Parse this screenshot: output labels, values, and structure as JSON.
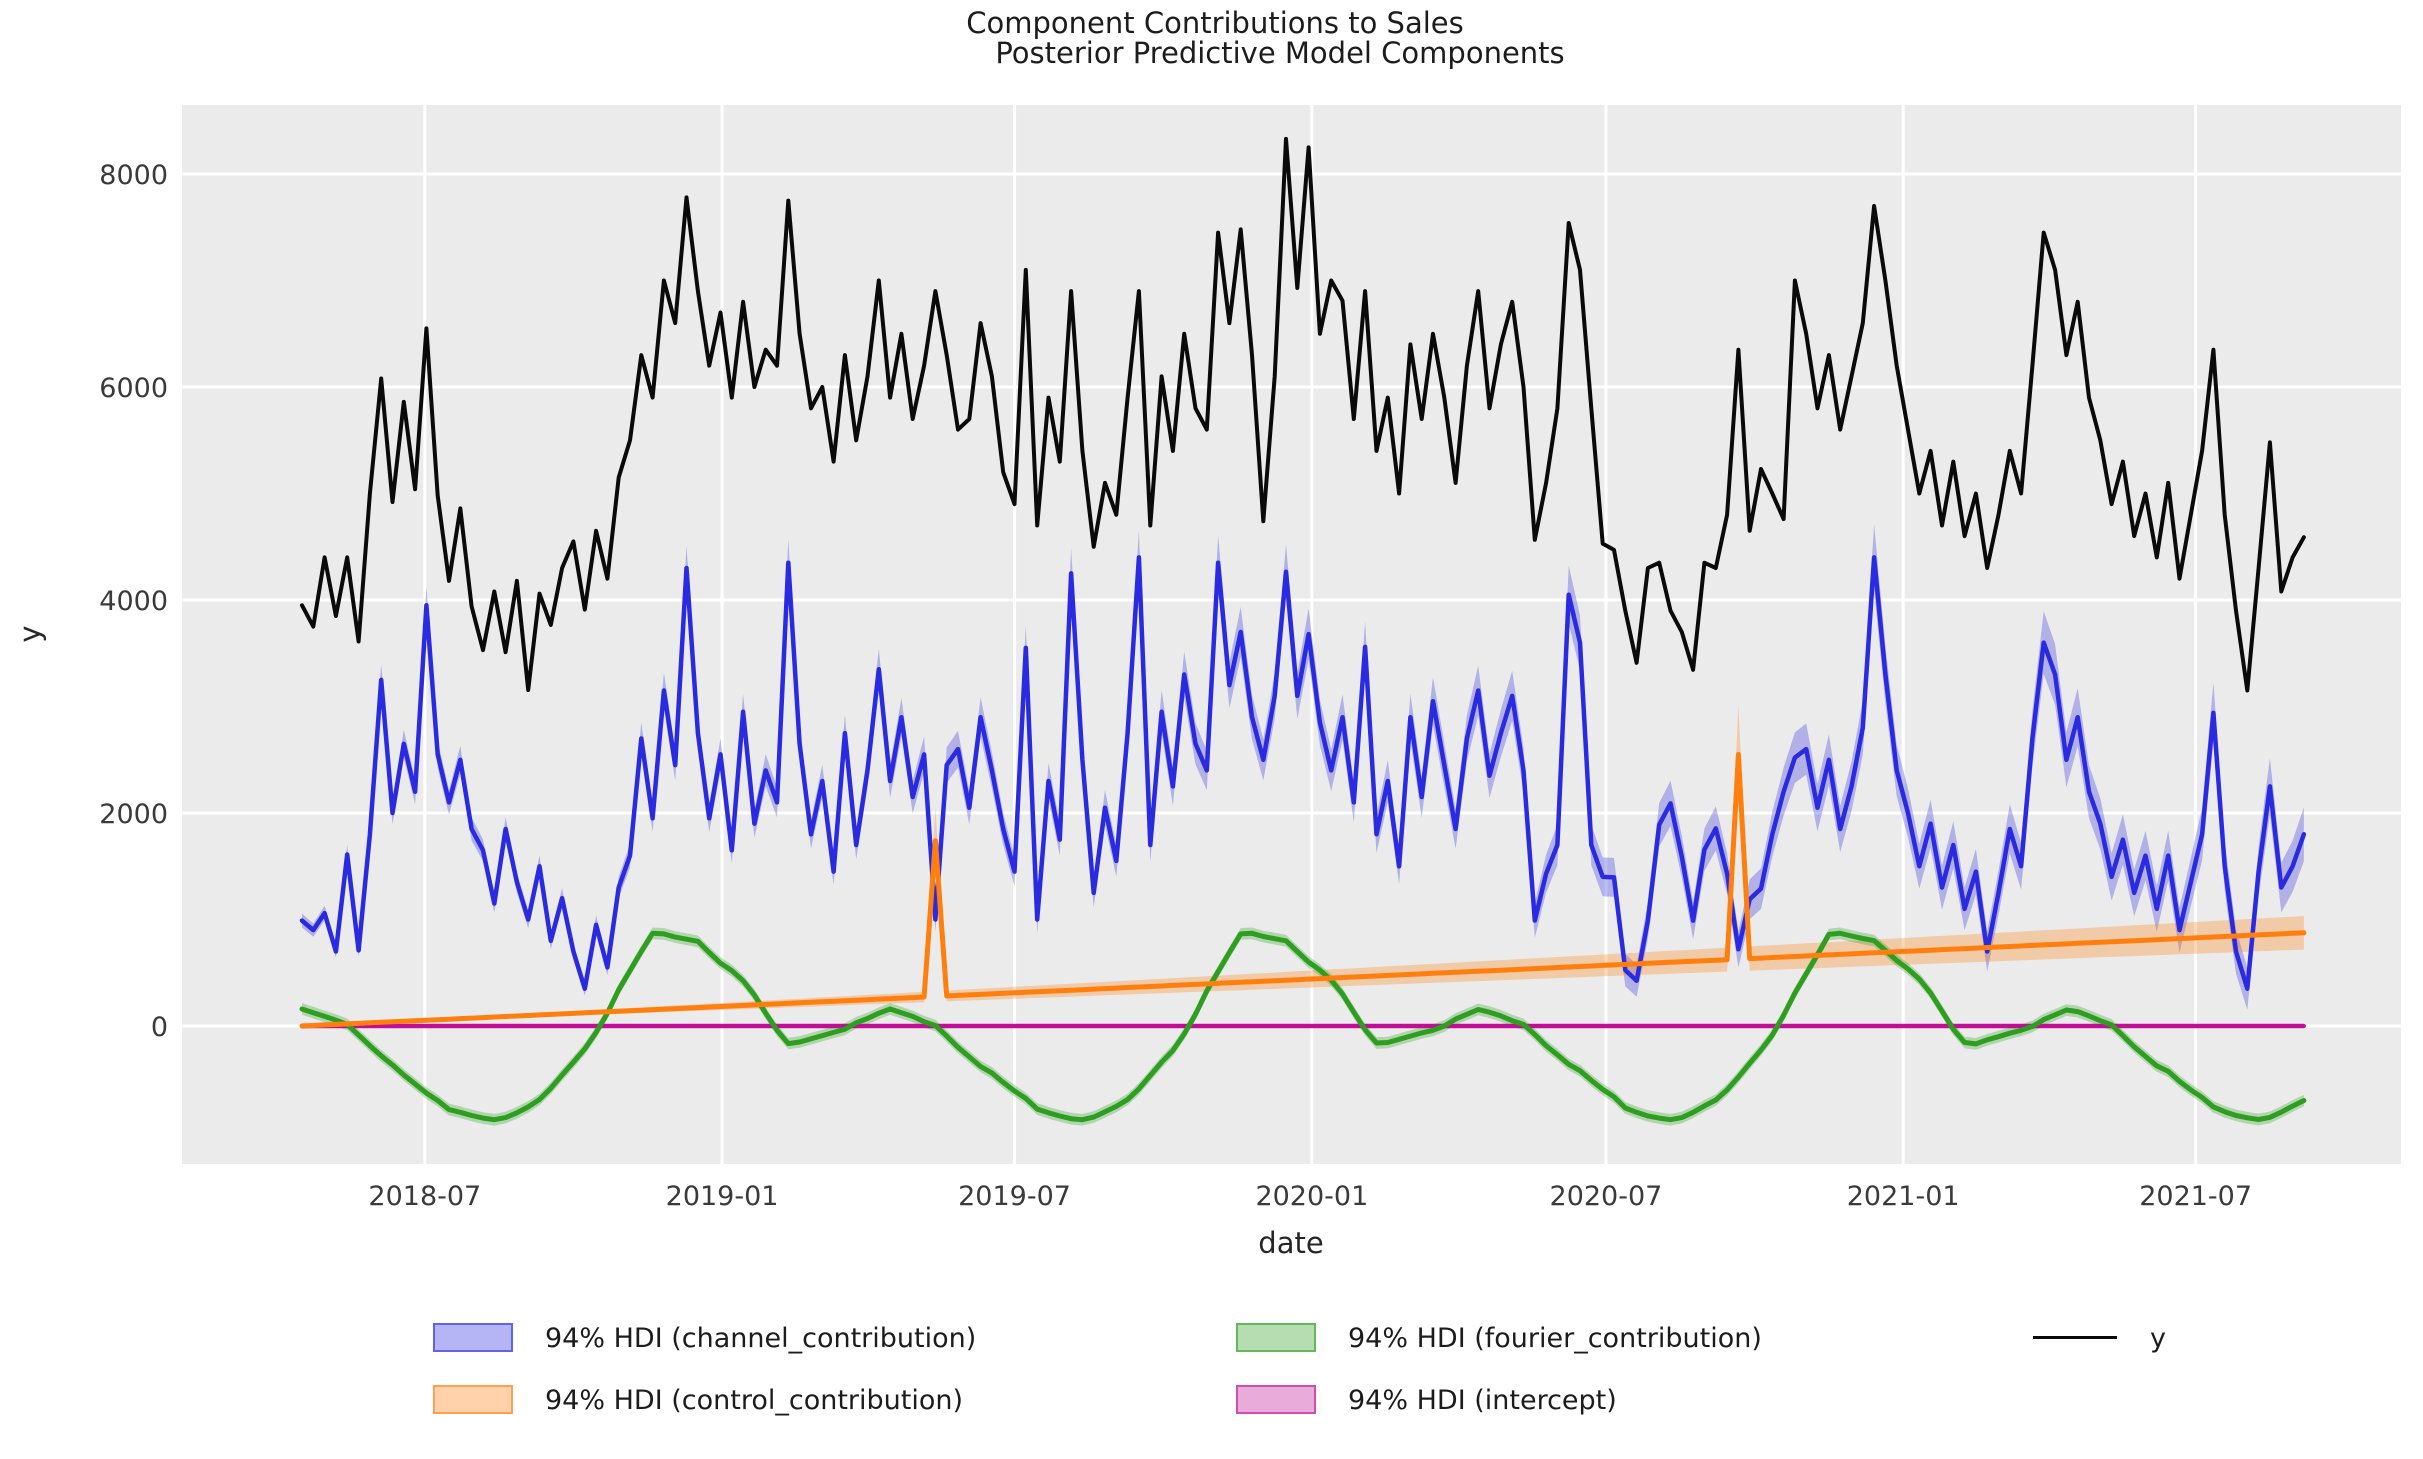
{
  "title": {
    "line1": "Component Contributions to Sales",
    "line2": "Posterior Predictive Model Components"
  },
  "axes": {
    "xlabel": "date",
    "ylabel": "y",
    "x_ticks": [
      {
        "label": "2018-07",
        "week": 10.86
      },
      {
        "label": "2019-01",
        "week": 37.14
      },
      {
        "label": "2019-07",
        "week": 63.0
      },
      {
        "label": "2020-01",
        "week": 89.29
      },
      {
        "label": "2020-07",
        "week": 115.29
      },
      {
        "label": "2021-01",
        "week": 141.57
      },
      {
        "label": "2021-07",
        "week": 167.43
      }
    ],
    "y_ticks": [
      {
        "label": "0",
        "value": 0
      },
      {
        "label": "2000",
        "value": 2000
      },
      {
        "label": "4000",
        "value": 4000
      },
      {
        "label": "6000",
        "value": 6000
      },
      {
        "label": "8000",
        "value": 8000
      }
    ]
  },
  "legend": {
    "items": [
      {
        "label": "94% HDI (channel_contribution)",
        "color": "#2a2be1",
        "kind": "patch",
        "col": 1,
        "row": 1
      },
      {
        "label": "94% HDI (control_contribution)",
        "color": "#ff7f0e",
        "kind": "patch",
        "col": 1,
        "row": 2
      },
      {
        "label": "94% HDI (fourier_contribution)",
        "color": "#2e9e20",
        "kind": "patch",
        "col": 2,
        "row": 1
      },
      {
        "label": "94% HDI (intercept)",
        "color": "#c00f96",
        "kind": "patch",
        "col": 2,
        "row": 2
      },
      {
        "label": "y",
        "color": "#0a0a0a",
        "kind": "line",
        "col": 3,
        "row": 1
      }
    ]
  },
  "style": {
    "plot_bg": "#ebebeb",
    "grid_color": "#ffffff",
    "tick_color": "#3a3a3a",
    "band_opacity": 0.3
  },
  "chart_data": {
    "type": "line",
    "title": "Component Contributions to Sales",
    "subtitle": "Posterior Predictive Model Components",
    "xlabel": "date",
    "ylabel": "y",
    "x_start_date": "2018-04-16",
    "x_freq": "weekly",
    "n_points": 178,
    "ylim": [
      -1300,
      8650
    ],
    "grid": true,
    "legend_position": "bottom",
    "series": [
      {
        "name": "y",
        "color": "#0a0a0a",
        "width": 4,
        "values": [
          3950,
          3750,
          4400,
          3850,
          4400,
          3610,
          5000,
          6080,
          4920,
          5860,
          5040,
          6550,
          4980,
          4180,
          4860,
          3940,
          3530,
          4080,
          3510,
          4180,
          3155,
          4060,
          3765,
          4300,
          4550,
          3910,
          4650,
          4200,
          5150,
          5500,
          6300,
          5900,
          7000,
          6600,
          7780,
          6900,
          6200,
          6700,
          5900,
          6800,
          6000,
          6350,
          6200,
          7750,
          6500,
          5800,
          6000,
          5300,
          6300,
          5500,
          6100,
          7000,
          5900,
          6500,
          5700,
          6200,
          6900,
          6300,
          5600,
          5700,
          6600,
          6100,
          5200,
          4900,
          7100,
          4700,
          5900,
          5300,
          6900,
          5400,
          4500,
          5100,
          4800,
          5900,
          6900,
          4700,
          6100,
          5400,
          6500,
          5800,
          5600,
          7450,
          6600,
          7480,
          6300,
          4740,
          6100,
          8330,
          6930,
          8250,
          6500,
          7000,
          6810,
          5700,
          6900,
          5400,
          5900,
          5000,
          6400,
          5700,
          6500,
          5900,
          5100,
          6200,
          6900,
          5800,
          6400,
          6800,
          6000,
          4565,
          5100,
          5800,
          7540,
          7100,
          5800,
          4530,
          4470,
          3900,
          3410,
          4300,
          4350,
          3900,
          3700,
          3345,
          4350,
          4300,
          4800,
          6350,
          4650,
          5230,
          5000,
          4760,
          7000,
          6500,
          5800,
          6300,
          5600,
          6100,
          6600,
          7700,
          7000,
          6200,
          5600,
          5000,
          5400,
          4700,
          5300,
          4600,
          5000,
          4300,
          4800,
          5400,
          5000,
          6200,
          7450,
          7100,
          6300,
          6800,
          5900,
          5500,
          4900,
          5300,
          4600,
          5000,
          4400,
          5100,
          4200,
          4800,
          5400,
          6350,
          4800,
          3900,
          3150,
          4300,
          5480,
          4080,
          4400,
          4590
        ]
      },
      {
        "name": "channel_contribution",
        "color": "#2a2be1",
        "width": 4.5,
        "hdi": {
          "base": 30,
          "frac": 0.035,
          "per_week": 0.9
        },
        "values": [
          990,
          900,
          1060,
          700,
          1610,
          710,
          1800,
          3250,
          2000,
          2650,
          2200,
          3950,
          2550,
          2100,
          2500,
          1850,
          1650,
          1150,
          1850,
          1350,
          1000,
          1500,
          800,
          1200,
          700,
          350,
          950,
          550,
          1300,
          1600,
          2700,
          1950,
          3150,
          2450,
          4300,
          2750,
          1950,
          2550,
          1650,
          2950,
          1900,
          2400,
          2100,
          4350,
          2650,
          1800,
          2300,
          1450,
          2750,
          1700,
          2400,
          3350,
          2300,
          2900,
          2150,
          2550,
          1000,
          2450,
          2600,
          2050,
          2900,
          2400,
          1850,
          1450,
          3550,
          1000,
          2300,
          1750,
          4250,
          2500,
          1250,
          2050,
          1550,
          2750,
          4400,
          1700,
          2950,
          2250,
          3300,
          2650,
          2400,
          4350,
          3200,
          3700,
          2900,
          2500,
          3100,
          4265,
          3100,
          3680,
          2850,
          2400,
          2900,
          2100,
          3560,
          1800,
          2300,
          1500,
          2900,
          2150,
          3050,
          2450,
          1850,
          2700,
          3150,
          2350,
          2750,
          3100,
          2400,
          990,
          1430,
          1700,
          4050,
          3600,
          1700,
          1400,
          1395,
          525,
          425,
          990,
          1890,
          2090,
          1590,
          990,
          1655,
          1855,
          1430,
          720,
          1190,
          1290,
          1800,
          2200,
          2520,
          2600,
          2050,
          2500,
          1850,
          2250,
          2800,
          4400,
          3300,
          2400,
          2000,
          1500,
          1900,
          1300,
          1700,
          1100,
          1450,
          700,
          1250,
          1850,
          1500,
          2700,
          3600,
          3300,
          2500,
          2900,
          2200,
          1900,
          1400,
          1750,
          1250,
          1600,
          1100,
          1600,
          900,
          1350,
          1800,
          2940,
          1500,
          700,
          350,
          1450,
          2250,
          1300,
          1500,
          1800
        ]
      },
      {
        "name": "control_contribution",
        "color": "#ff7f0e",
        "width": 5,
        "hdi": {
          "frac": 0.18,
          "min": 8
        },
        "keypoints": [
          [
            0,
            0
          ],
          [
            55,
            272
          ],
          [
            56,
            1740
          ],
          [
            57,
            282
          ],
          [
            126,
            623
          ],
          [
            127,
            2550
          ],
          [
            128,
            633
          ],
          [
            177,
            875
          ]
        ]
      },
      {
        "name": "fourier_contribution",
        "color": "#2e9e20",
        "width": 5,
        "hdi": {
          "abs": 55
        },
        "values": [
          160,
          125,
          90,
          55,
          15,
          -85,
          -185,
          -280,
          -365,
          -460,
          -545,
          -630,
          -700,
          -785,
          -810,
          -840,
          -865,
          -880,
          -860,
          -815,
          -760,
          -690,
          -585,
          -460,
          -340,
          -215,
          -60,
          120,
          340,
          520,
          700,
          870,
          865,
          835,
          815,
          795,
          690,
          590,
          520,
          425,
          290,
          120,
          -40,
          -165,
          -150,
          -120,
          -90,
          -60,
          -30,
          30,
          70,
          120,
          160,
          125,
          90,
          40,
          5,
          -95,
          -200,
          -290,
          -380,
          -440,
          -530,
          -610,
          -680,
          -780,
          -815,
          -845,
          -870,
          -880,
          -855,
          -805,
          -755,
          -690,
          -590,
          -465,
          -340,
          -230,
          -75,
          110,
          330,
          510,
          690,
          865,
          870,
          840,
          820,
          800,
          700,
          600,
          525,
          430,
          300,
          130,
          -35,
          -160,
          -155,
          -125,
          -95,
          -65,
          -40,
          0,
          65,
          110,
          155,
          130,
          95,
          50,
          15,
          -80,
          -185,
          -270,
          -360,
          -420,
          -510,
          -595,
          -665,
          -770,
          -810,
          -845,
          -865,
          -880,
          -860,
          -810,
          -750,
          -695,
          -600,
          -480,
          -350,
          -225,
          -85,
          100,
          310,
          490,
          670,
          860,
          870,
          845,
          822,
          802,
          710,
          615,
          535,
          440,
          310,
          140,
          -30,
          -155,
          -168,
          -130,
          -100,
          -68,
          -40,
          -5,
          60,
          105,
          150,
          135,
          95,
          50,
          10,
          -90,
          -195,
          -285,
          -375,
          -425,
          -520,
          -600,
          -670,
          -760,
          -805,
          -840,
          -862,
          -878,
          -858,
          -808,
          -752,
          -700
        ]
      },
      {
        "name": "intercept",
        "color": "#c00f96",
        "width": 4,
        "hdi": {
          "abs": 25
        },
        "keypoints": [
          [
            0,
            0
          ],
          [
            177,
            0
          ]
        ]
      }
    ]
  }
}
